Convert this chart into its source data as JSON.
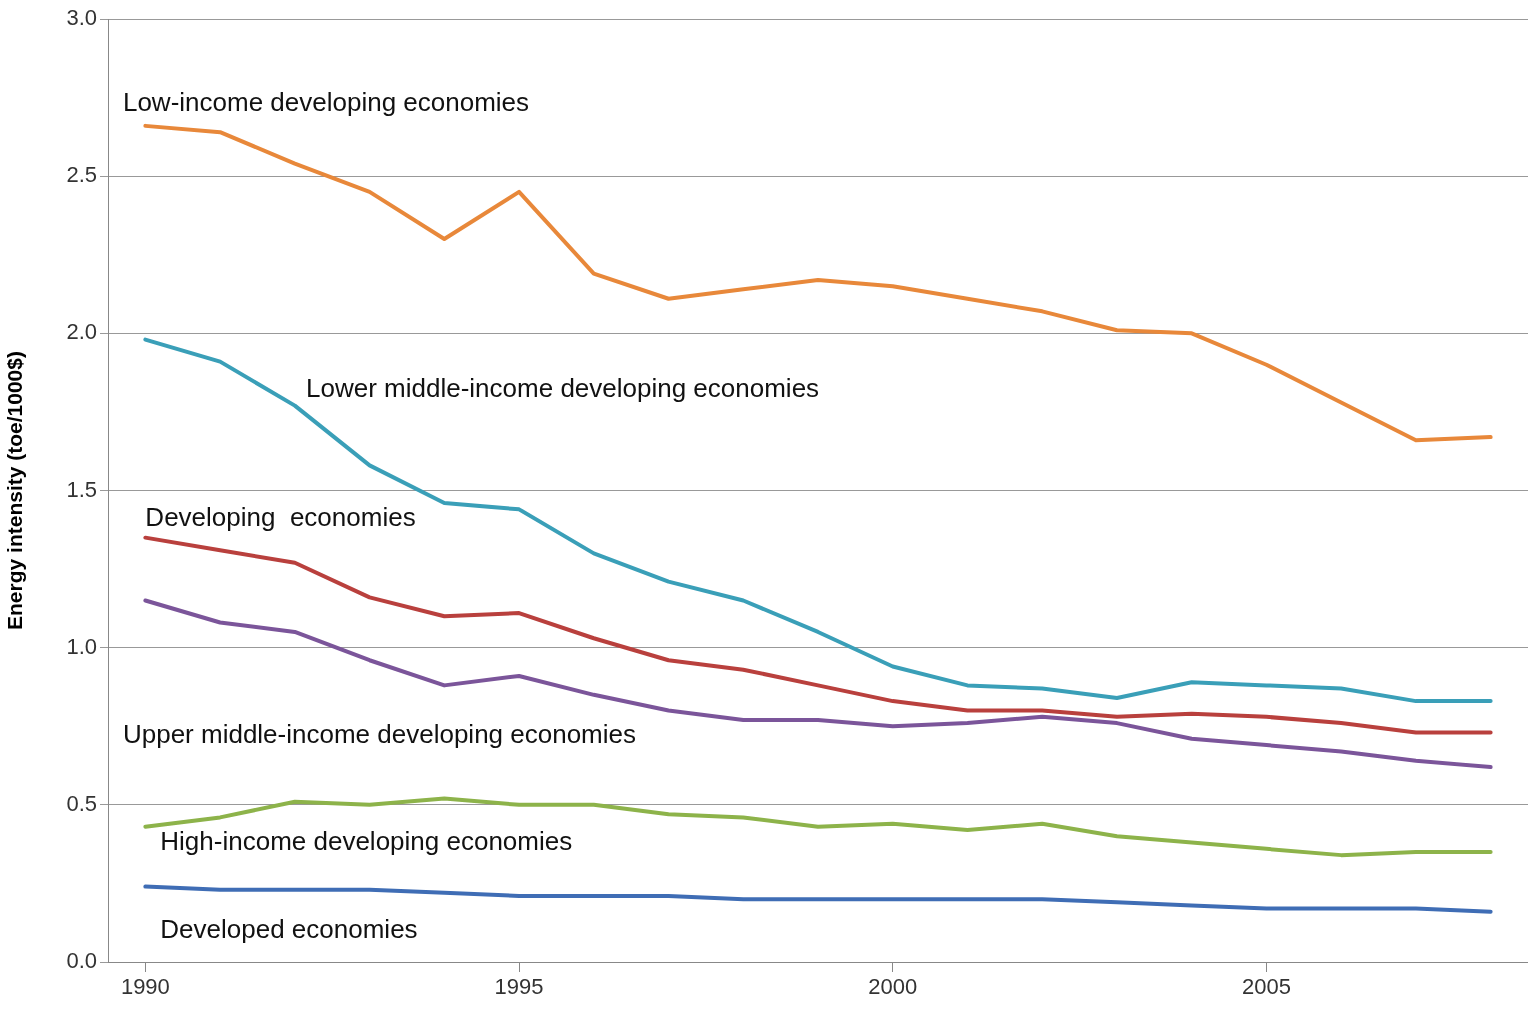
{
  "chart_data": {
    "type": "line",
    "ylabel": "Energy intensity (toe/1000$)",
    "x": [
      1990,
      1991,
      1992,
      1993,
      1994,
      1995,
      1996,
      1997,
      1998,
      1999,
      2000,
      2001,
      2002,
      2003,
      2004,
      2005,
      2006,
      2007,
      2008
    ],
    "xlim": [
      1989.5,
      2008.5
    ],
    "xticks": [
      1990,
      1995,
      2000,
      2005
    ],
    "ylim": [
      0,
      3
    ],
    "yticks": [
      {
        "value": 0,
        "label": "0.0"
      },
      {
        "value": 0.5,
        "label": "0.5"
      },
      {
        "value": 1,
        "label": "1.0"
      },
      {
        "value": 1.5,
        "label": "1.5"
      },
      {
        "value": 2,
        "label": "2.0"
      },
      {
        "value": 2.5,
        "label": "2.5"
      },
      {
        "value": 3,
        "label": "3.0"
      }
    ],
    "grid": "y",
    "legend": false,
    "marker": "none",
    "line_style": "solid",
    "series": [
      {
        "name": "Low-income developing economies",
        "color": "#e8883a",
        "values": [
          2.66,
          2.64,
          2.54,
          2.45,
          2.3,
          2.45,
          2.19,
          2.11,
          2.14,
          2.17,
          2.15,
          2.11,
          2.07,
          2.01,
          2.0,
          1.9,
          1.78,
          1.66,
          1.67
        ]
      },
      {
        "name": "Lower middle-income developing economies",
        "color": "#3a9fb8",
        "values": [
          1.98,
          1.91,
          1.77,
          1.58,
          1.46,
          1.44,
          1.3,
          1.21,
          1.15,
          1.05,
          0.94,
          0.88,
          0.87,
          0.84,
          0.89,
          0.88,
          0.87,
          0.83,
          0.83
        ]
      },
      {
        "name": "Developing  economies",
        "color": "#b9403d",
        "values": [
          1.35,
          1.31,
          1.27,
          1.16,
          1.1,
          1.11,
          1.03,
          0.96,
          0.93,
          0.88,
          0.83,
          0.8,
          0.8,
          0.78,
          0.79,
          0.78,
          0.76,
          0.73,
          0.73
        ]
      },
      {
        "name": "Upper middle-income developing economies",
        "color": "#7b559a",
        "values": [
          1.15,
          1.08,
          1.05,
          0.96,
          0.88,
          0.91,
          0.85,
          0.8,
          0.77,
          0.77,
          0.75,
          0.76,
          0.78,
          0.76,
          0.71,
          0.69,
          0.67,
          0.64,
          0.62
        ]
      },
      {
        "name": "High-income developing economies",
        "color": "#8db34a",
        "values": [
          0.43,
          0.46,
          0.51,
          0.5,
          0.52,
          0.5,
          0.5,
          0.47,
          0.46,
          0.43,
          0.44,
          0.42,
          0.44,
          0.4,
          0.38,
          0.36,
          0.34,
          0.35,
          0.35
        ]
      },
      {
        "name": "Developed economies",
        "color": "#3f6db5",
        "values": [
          0.24,
          0.23,
          0.23,
          0.23,
          0.22,
          0.21,
          0.21,
          0.21,
          0.2,
          0.2,
          0.2,
          0.2,
          0.2,
          0.19,
          0.18,
          0.17,
          0.17,
          0.17,
          0.16
        ]
      }
    ]
  }
}
